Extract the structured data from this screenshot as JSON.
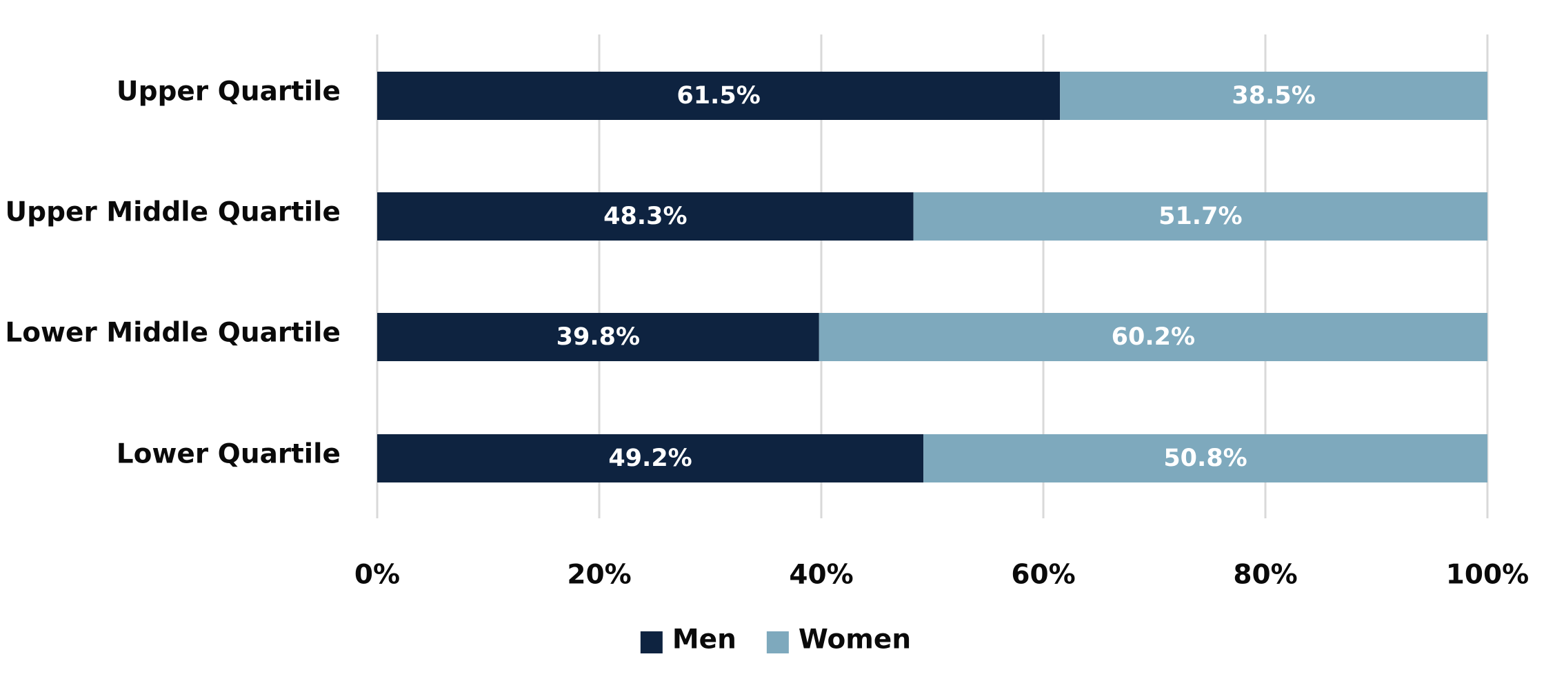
{
  "chart_data": {
    "type": "bar",
    "orientation": "horizontal",
    "stacked": true,
    "categories": [
      "Upper Quartile",
      "Upper Middle Quartile",
      "Lower Middle Quartile",
      "Lower Quartile"
    ],
    "series": [
      {
        "name": "Men",
        "color": "#0e2340",
        "values": [
          61.5,
          48.3,
          39.8,
          49.2
        ],
        "labels": [
          "61.5%",
          "48.3%",
          "39.8%",
          "49.2%"
        ]
      },
      {
        "name": "Women",
        "color": "#7ea9bd",
        "values": [
          38.5,
          51.7,
          60.2,
          50.8
        ],
        "labels": [
          "38.5%",
          "51.7%",
          "60.2%",
          "50.8%"
        ]
      }
    ],
    "xlim": [
      0,
      100
    ],
    "x_ticks": [
      0,
      20,
      40,
      60,
      80,
      100
    ],
    "x_tick_labels": [
      "0%",
      "20%",
      "40%",
      "60%",
      "80%",
      "100%"
    ],
    "grid": "vertical",
    "legend_position": "bottom",
    "title": "",
    "xlabel": "",
    "ylabel": ""
  }
}
